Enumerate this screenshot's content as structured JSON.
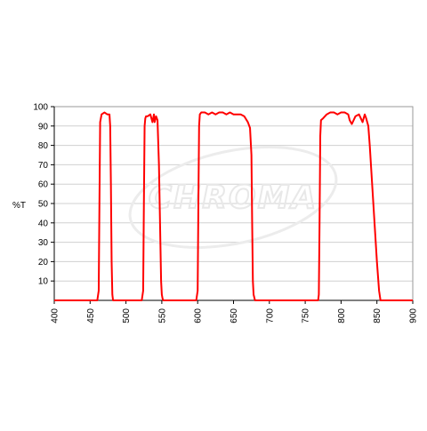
{
  "chart_data": {
    "type": "line",
    "title": "",
    "xlabel": "",
    "ylabel": "%T",
    "xlim": [
      400,
      900
    ],
    "ylim": [
      0,
      100
    ],
    "x_ticks": [
      400,
      450,
      500,
      550,
      600,
      650,
      700,
      750,
      800,
      850,
      900
    ],
    "y_ticks": [
      10,
      20,
      30,
      40,
      50,
      60,
      70,
      80,
      90,
      100
    ],
    "grid": "horizontal",
    "watermark": "CHROMA",
    "line_color": "#ff0000",
    "series": [
      {
        "x": [
          400,
          460,
          462,
          463,
          464,
          466,
          470,
          474,
          477,
          478,
          479,
          480,
          481,
          482,
          485,
          500,
          522,
          524,
          525,
          526,
          527,
          528,
          530,
          534,
          537,
          539,
          540,
          542,
          544,
          546,
          548,
          549,
          550,
          551,
          552,
          555,
          580,
          598,
          600,
          601,
          602,
          603,
          605,
          610,
          615,
          620,
          625,
          630,
          635,
          640,
          645,
          650,
          655,
          660,
          665,
          670,
          673,
          675,
          676,
          677,
          678,
          680,
          690,
          740,
          768,
          769,
          770,
          771,
          772,
          775,
          780,
          785,
          790,
          795,
          800,
          805,
          810,
          812,
          815,
          820,
          825,
          830,
          833,
          835,
          838,
          840,
          845,
          850,
          853,
          855,
          900
        ],
        "y": [
          0,
          0,
          5,
          50,
          92,
          96,
          97,
          96,
          96,
          90,
          60,
          20,
          3,
          0,
          0,
          0,
          0,
          5,
          50,
          90,
          94,
          95,
          95,
          96,
          92,
          96,
          92,
          95,
          93,
          70,
          30,
          10,
          3,
          1,
          0,
          0,
          0,
          0,
          5,
          50,
          90,
          96,
          97,
          97,
          96,
          97,
          96,
          97,
          97,
          96,
          97,
          96,
          96,
          96,
          95,
          92,
          89,
          75,
          40,
          10,
          3,
          0,
          0,
          0,
          0,
          3,
          40,
          85,
          93,
          94,
          96,
          97,
          97,
          96,
          97,
          97,
          96,
          93,
          91,
          95,
          96,
          92,
          96,
          94,
          90,
          80,
          50,
          20,
          5,
          0,
          0
        ]
      }
    ]
  }
}
